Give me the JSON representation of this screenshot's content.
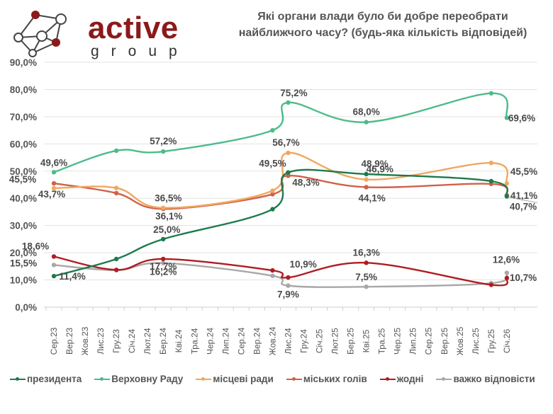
{
  "logo": {
    "word": "active",
    "sub": "group",
    "brand_color": "#8b1a1a"
  },
  "chart_data": {
    "type": "line",
    "title": "Які органи влади було би добре переобрати найближчого часу? (будь-яка кількість відповідей)",
    "title_lines": [
      "Які органи влади було би добре переобрати",
      "найближчого часу? (будь-яка кількість відповідей)"
    ],
    "xlabel": "",
    "ylabel": "",
    "ylim": [
      0,
      90
    ],
    "yticks": [
      "0,0%",
      "10,0%",
      "20,0%",
      "30,0%",
      "40,0%",
      "50,0%",
      "60,0%",
      "70,0%",
      "80,0%",
      "90,0%"
    ],
    "ytick_values": [
      0,
      10,
      20,
      30,
      40,
      50,
      60,
      70,
      80,
      90
    ],
    "grid": true,
    "legend_position": "bottom",
    "categories": [
      "Сер.23",
      "Вер.23",
      "Жов.23",
      "Лис.23",
      "Гру.23",
      "Січ.24",
      "Лют.24",
      "Бер.24",
      "Кві.24",
      "Тра.24",
      "Чер.24",
      "Лип.24",
      "Сер.24",
      "Вер.24",
      "Жов.24",
      "Лис.24",
      "Гру.24",
      "Січ.25",
      "Лют.25",
      "Бер.25",
      "Кві.25",
      "Тра.25",
      "Чер.25",
      "Лип.25",
      "Сер.25",
      "Вер.25",
      "Жов.25",
      "Лис.25",
      "Гру.25",
      "Січ.26"
    ],
    "point_categories": [
      "Сер.23",
      "Гру.23",
      "Бер.24",
      "Жов.24",
      "Лис.24",
      "Кві.25",
      "Гру.25",
      "Січ.26"
    ],
    "series": [
      {
        "name": "президента",
        "color": "#1e7a4c",
        "values": [
          11.4,
          17.7,
          25.0,
          36.0,
          49.5,
          48.9,
          46.3,
          40.7
        ],
        "labels": [
          "11,4%",
          "",
          "25,0%",
          "",
          "49,5%",
          "48,9%",
          "",
          "40,7%"
        ]
      },
      {
        "name": "Верховну Раду",
        "color": "#4dbb8a",
        "values": [
          49.6,
          57.5,
          57.2,
          65.0,
          75.2,
          68.0,
          78.6,
          69.6
        ],
        "labels": [
          "49,6%",
          "",
          "57,2%",
          "",
          "75,2%",
          "68,0%",
          "",
          "69,6%"
        ]
      },
      {
        "name": "місцеві ради",
        "color": "#f0a860",
        "values": [
          43.7,
          43.8,
          36.5,
          42.8,
          56.7,
          46.9,
          53.0,
          45.5
        ],
        "labels": [
          "43,7%",
          "",
          "36,5%",
          "",
          "56,7%",
          "46,9%",
          "",
          "45,5%"
        ]
      },
      {
        "name": "міських голів",
        "color": "#d0614a",
        "values": [
          45.5,
          41.9,
          36.1,
          41.5,
          48.3,
          44.1,
          45.3,
          41.1
        ],
        "labels": [
          "45,5%",
          "",
          "36,1%",
          "",
          "48,3%",
          "44,1%",
          "",
          "41,1%"
        ]
      },
      {
        "name": "жодні",
        "color": "#b01c22",
        "values": [
          18.6,
          13.7,
          17.7,
          13.5,
          10.9,
          16.3,
          8.2,
          10.7
        ],
        "labels": [
          "18,6%",
          "",
          "17,7%",
          "",
          "10,9%",
          "16,3%",
          "",
          "10,7%"
        ]
      },
      {
        "name": "важко відповісти",
        "color": "#a8a8a8",
        "values": [
          15.5,
          13.6,
          16.2,
          11.5,
          7.9,
          7.5,
          8.8,
          12.6
        ],
        "labels": [
          "15,5%",
          "",
          "16,2%",
          "",
          "7,9%",
          "7,5%",
          "",
          "12,6%"
        ]
      }
    ]
  }
}
